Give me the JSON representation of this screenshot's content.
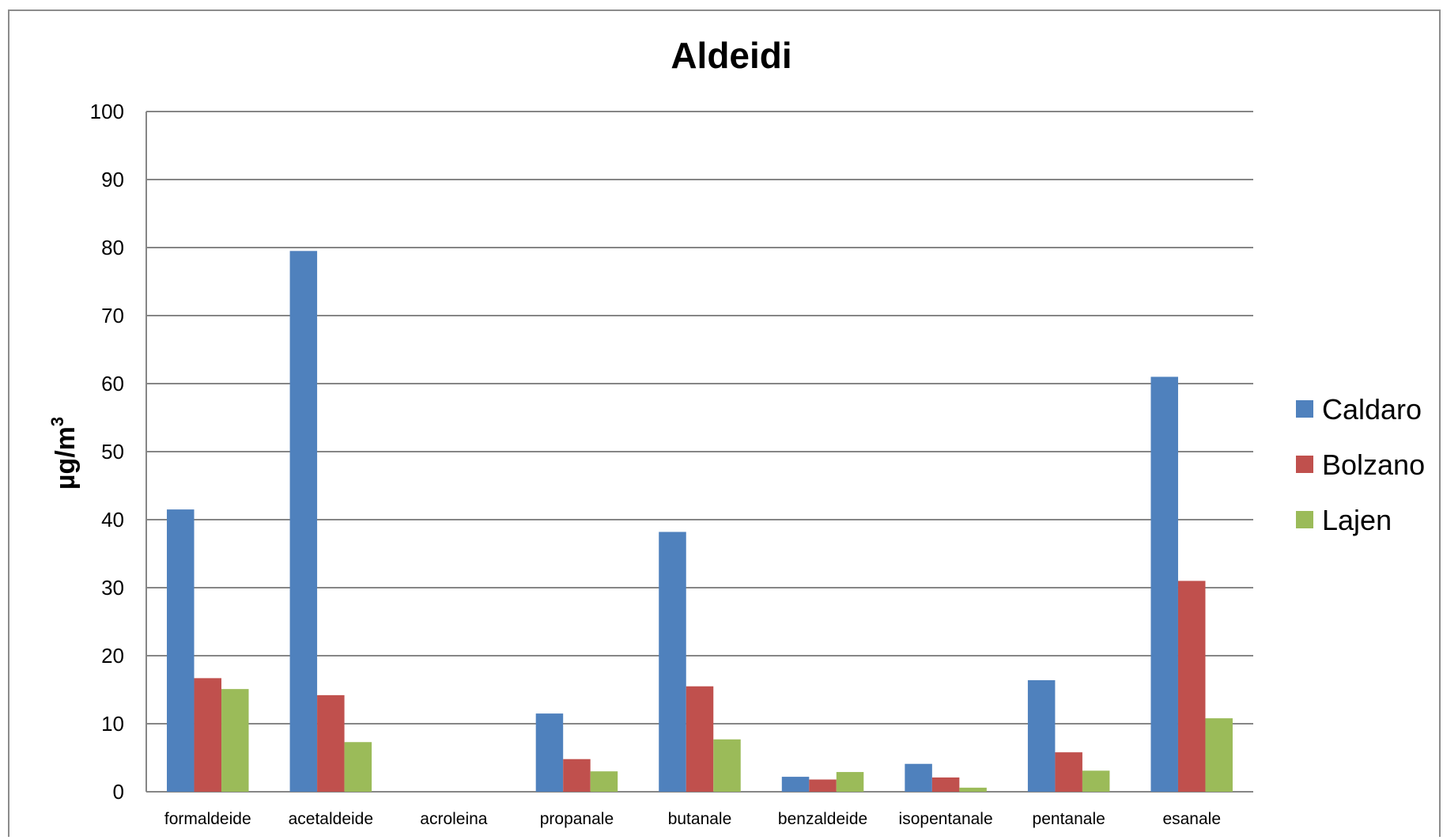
{
  "chart_data": {
    "type": "bar",
    "title": "Aldeidi",
    "ylabel": "µg/m",
    "ylabel_superscript": "3",
    "xlabel": "",
    "ylim": [
      0,
      100
    ],
    "yticks": [
      "0",
      "10",
      "20",
      "30",
      "40",
      "50",
      "60",
      "70",
      "80",
      "90",
      "100"
    ],
    "grid": true,
    "legend_position": "right",
    "categories": [
      "formaldeide",
      "acetaldeide",
      "acroleina",
      "propanale",
      "butanale",
      "benzaldeide",
      "isopentanale",
      "pentanale",
      "esanale"
    ],
    "series": [
      {
        "name": "Caldaro",
        "color": "#4f81bd",
        "values": [
          41.5,
          79.5,
          0,
          11.5,
          38.2,
          2.2,
          4.1,
          16.4,
          61.0
        ]
      },
      {
        "name": "Bolzano",
        "color": "#c0504d",
        "values": [
          16.7,
          14.2,
          0,
          4.8,
          15.5,
          1.8,
          2.1,
          5.8,
          31.0
        ]
      },
      {
        "name": "Lajen",
        "color": "#9bbb59",
        "values": [
          15.1,
          7.3,
          0,
          3.0,
          7.7,
          2.9,
          0.6,
          3.1,
          10.8
        ]
      }
    ]
  }
}
